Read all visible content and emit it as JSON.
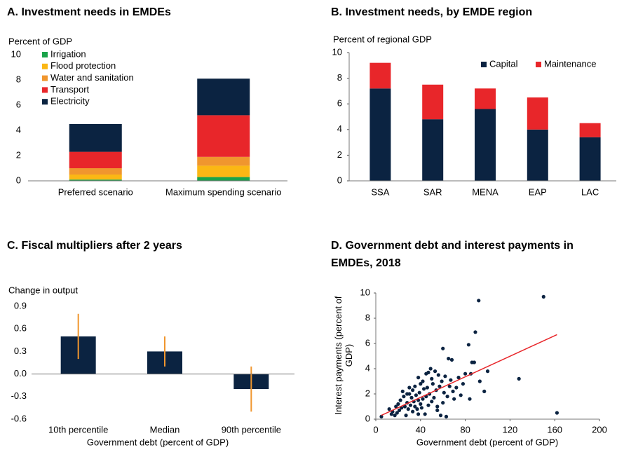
{
  "chart_data": [
    {
      "type": "bar",
      "stacked": true,
      "title": "A. Investment needs in EMDEs",
      "ylabel": "Percent of GDP",
      "categories": [
        "Preferred scenario",
        "Maximum spending scenario"
      ],
      "series": [
        {
          "name": "Irrigation",
          "color": "#1aa34a",
          "values": [
            0.1,
            0.3
          ]
        },
        {
          "name": "Flood protection",
          "color": "#fbb714",
          "values": [
            0.4,
            0.9
          ]
        },
        {
          "name": "Water and sanitation",
          "color": "#f0962e",
          "values": [
            0.5,
            0.7
          ]
        },
        {
          "name": "Transport",
          "color": "#e8262a",
          "values": [
            1.3,
            3.3
          ]
        },
        {
          "name": "Electricity",
          "color": "#0b2341",
          "values": [
            2.2,
            2.9
          ]
        }
      ],
      "ylim": [
        0,
        10
      ],
      "yticks": [
        0,
        2,
        4,
        6,
        8,
        10
      ],
      "legend": "top-left"
    },
    {
      "type": "bar",
      "stacked": true,
      "title": "B. Investment needs, by EMDE region",
      "ylabel": "Percent of regional GDP",
      "categories": [
        "SSA",
        "SAR",
        "MENA",
        "EAP",
        "LAC"
      ],
      "series": [
        {
          "name": "Capital",
          "color": "#0b2341",
          "values": [
            7.2,
            4.8,
            5.6,
            4.0,
            3.4
          ]
        },
        {
          "name": "Maintenance",
          "color": "#e8262a",
          "values": [
            2.0,
            2.7,
            1.6,
            2.5,
            1.1
          ]
        }
      ],
      "ylim": [
        0,
        10
      ],
      "yticks": [
        0,
        2,
        4,
        6,
        8,
        10
      ],
      "legend": "top-right"
    },
    {
      "type": "bar",
      "title": "C. Fiscal multipliers after 2 years",
      "ylabel": "Change in output",
      "xlabel": "Government debt (percent of GDP)",
      "categories": [
        "10th percentile",
        "Median",
        "90th percentile"
      ],
      "values": [
        0.5,
        0.3,
        -0.2
      ],
      "errors": [
        0.3,
        0.2,
        0.3
      ],
      "color": "#0b2341",
      "error_color": "#f0962e",
      "ylim": [
        -0.6,
        0.9
      ],
      "yticks": [
        -0.6,
        -0.3,
        {
          "value": 0,
          "label": "0.0"
        },
        0.3,
        0.6,
        0.9
      ]
    },
    {
      "type": "scatter",
      "title": "D. Government debt and interest payments in EMDEs, 2018",
      "ylabel": "Interest payments (percent of GDP)",
      "xlabel": "Government debt (percent of GDP)",
      "x": [
        5,
        12,
        14,
        15,
        17,
        18,
        19,
        20,
        21,
        22,
        23,
        24,
        25,
        26,
        27,
        28,
        28,
        29,
        30,
        31,
        32,
        33,
        33,
        34,
        35,
        35,
        36,
        37,
        38,
        38,
        39,
        40,
        40,
        41,
        42,
        42,
        43,
        44,
        45,
        45,
        46,
        47,
        48,
        49,
        50,
        50,
        51,
        52,
        53,
        54,
        55,
        56,
        57,
        58,
        59,
        60,
        61,
        62,
        63,
        64,
        65,
        66,
        67,
        68,
        69,
        70,
        72,
        74,
        76,
        78,
        80,
        83,
        84,
        85,
        86,
        88,
        89,
        92,
        93,
        97,
        100,
        128,
        150,
        162,
        60,
        47,
        55,
        38,
        30
      ],
      "values": [
        0.2,
        0.8,
        0.4,
        0.6,
        0.3,
        1.0,
        0.5,
        1.2,
        0.7,
        1.5,
        0.9,
        2.2,
        1.8,
        1.0,
        0.3,
        2.0,
        1.3,
        0.8,
        2.5,
        1.1,
        1.7,
        0.6,
        2.3,
        1.4,
        2.6,
        1.0,
        1.9,
        0.8,
        3.3,
        1.5,
        2.1,
        1.2,
        2.8,
        0.9,
        3.0,
        1.6,
        2.4,
        0.4,
        1.8,
        3.6,
        2.5,
        1.1,
        2.0,
        4.0,
        1.4,
        3.2,
        2.8,
        1.7,
        3.8,
        2.3,
        1.0,
        3.5,
        2.6,
        0.3,
        3.0,
        5.6,
        2.1,
        3.4,
        0.2,
        1.8,
        4.8,
        2.6,
        3.1,
        4.7,
        2.2,
        1.6,
        2.5,
        3.3,
        1.9,
        2.8,
        3.6,
        5.9,
        1.6,
        3.6,
        4.5,
        4.5,
        6.9,
        9.4,
        3.0,
        2.2,
        3.8,
        3.2,
        9.7,
        0.5,
        1.3,
        3.7,
        0.7,
        0.4,
        2.0
      ],
      "color": "#0b2341",
      "trend": {
        "x": [
          5,
          162
        ],
        "y": [
          0.3,
          6.7
        ],
        "color": "#e8262a"
      },
      "xlim": [
        0,
        200
      ],
      "xticks": [
        0,
        40,
        80,
        120,
        160,
        200
      ],
      "ylim": [
        0,
        10
      ],
      "yticks": [
        0,
        2,
        4,
        6,
        8,
        10
      ]
    }
  ]
}
